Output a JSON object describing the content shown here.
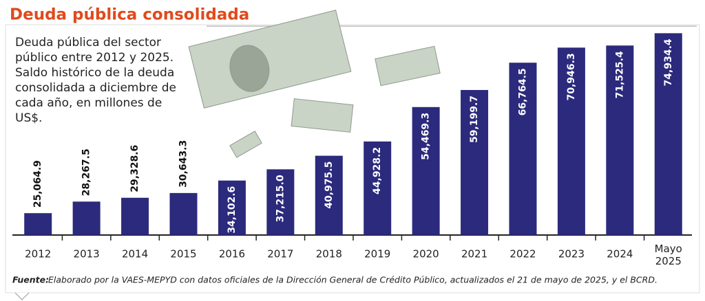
{
  "chart_data": {
    "type": "bar",
    "title": "Deuda pública consolidada",
    "subtitle": "Deuda pública del sector público entre 2012 y 2025. Saldo histórico de la deuda consolidada a diciembre de cada año, en millones de US$.",
    "categories": [
      "2012",
      "2013",
      "2014",
      "2015",
      "2016",
      "2017",
      "2018",
      "2019",
      "2020",
      "2021",
      "2022",
      "2023",
      "2024",
      "Mayo 2025"
    ],
    "values": [
      25064.9,
      28267.5,
      29328.6,
      30643.3,
      34102.6,
      37215.0,
      40975.5,
      44928.2,
      54469.3,
      59199.7,
      66764.5,
      70946.3,
      71525.4,
      74934.4
    ],
    "value_labels": [
      "25,064.9",
      "28,267.5",
      "29,328.6",
      "30,643.3",
      "34,102.6",
      "37,215.0",
      "40,975.5",
      "44,928.2",
      "54,469.3",
      "59,199.7",
      "66,764.5",
      "70,946.3",
      "71,525.4",
      "74,934.4"
    ],
    "color": "#2b2a7c",
    "ylim": [
      19000,
      75000
    ],
    "source_label": "Fuente:",
    "source": "Elaborado por la VAES-MEPYD con datos oficiales de la Dirección General de Crédito Público, actualizados el 21 de mayo de 2025, y el BCRD."
  }
}
